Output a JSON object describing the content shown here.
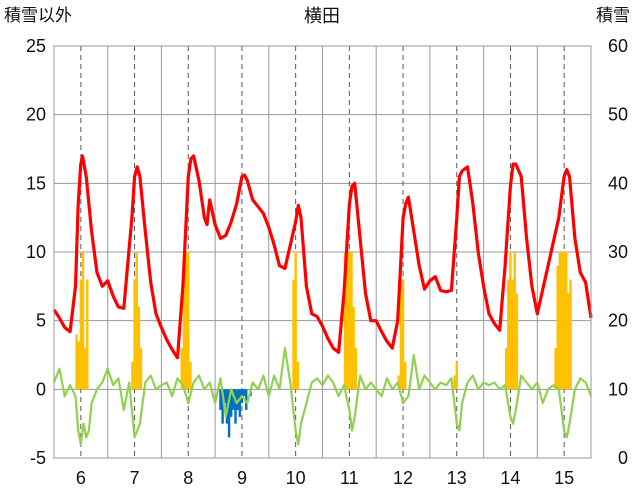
{
  "chart_data": {
    "type": "line",
    "title": "横田",
    "left_axis_label": "積雪以外",
    "right_axis_label": "積雪",
    "x_ticks": [
      "6",
      "7",
      "8",
      "9",
      "10",
      "11",
      "12",
      "13",
      "14",
      "15"
    ],
    "x_range": [
      5.5,
      15.5
    ],
    "y_left": {
      "ticks": [
        25,
        20,
        15,
        10,
        5,
        0,
        -5
      ],
      "range": [
        -5,
        25
      ]
    },
    "y_right": {
      "ticks": [
        60,
        50,
        40,
        30,
        20,
        10,
        0
      ],
      "range": [
        0,
        60
      ]
    },
    "grid": {
      "horizontal": "solid",
      "vertical_day_boundaries": "solid",
      "vertical_noon": "dashed"
    },
    "legend": "none",
    "colors": {
      "temperature": "#ff0000",
      "precipitation": "#ffc000",
      "snow_depth_change": "#0070c0",
      "sunshine_or_other": "#92d050",
      "grid": "#999999"
    },
    "series": [
      {
        "key": "temperature",
        "axis": "left",
        "style": "line",
        "x": [
          5.5,
          5.6,
          5.7,
          5.8,
          5.9,
          5.95,
          6.0,
          6.03,
          6.1,
          6.2,
          6.3,
          6.4,
          6.5,
          6.6,
          6.7,
          6.8,
          6.95,
          7.0,
          7.05,
          7.1,
          7.2,
          7.3,
          7.4,
          7.5,
          7.6,
          7.7,
          7.8,
          7.9,
          8.0,
          8.05,
          8.1,
          8.2,
          8.3,
          8.35,
          8.4,
          8.5,
          8.6,
          8.7,
          8.8,
          8.9,
          9.0,
          9.05,
          9.1,
          9.2,
          9.3,
          9.4,
          9.5,
          9.6,
          9.7,
          9.8,
          9.9,
          10.0,
          10.05,
          10.1,
          10.2,
          10.3,
          10.4,
          10.5,
          10.6,
          10.7,
          10.8,
          10.9,
          11.0,
          11.05,
          11.1,
          11.2,
          11.3,
          11.4,
          11.5,
          11.6,
          11.7,
          11.8,
          11.9,
          12.0,
          12.05,
          12.1,
          12.2,
          12.3,
          12.4,
          12.5,
          12.6,
          12.7,
          12.8,
          12.9,
          13.0,
          13.05,
          13.1,
          13.2,
          13.3,
          13.4,
          13.5,
          13.6,
          13.7,
          13.8,
          13.9,
          14.0,
          14.05,
          14.1,
          14.2,
          14.3,
          14.4,
          14.5,
          14.9,
          15.0,
          15.05,
          15.1,
          15.2,
          15.3,
          15.4,
          15.5
        ],
        "values": [
          5.8,
          5.2,
          4.5,
          4.2,
          7.5,
          13.5,
          16.4,
          17.0,
          15.5,
          11.5,
          8.5,
          7.5,
          7.9,
          6.8,
          6.0,
          5.9,
          12.5,
          15.5,
          16.2,
          15.5,
          11.5,
          7.8,
          5.5,
          4.5,
          3.6,
          2.9,
          2.3,
          7.5,
          15.5,
          16.8,
          17.0,
          15.2,
          12.5,
          12.0,
          13.8,
          12.0,
          11.0,
          11.2,
          12.2,
          13.5,
          15.5,
          15.6,
          15.2,
          13.8,
          13.3,
          12.8,
          11.8,
          10.5,
          9.0,
          8.8,
          10.5,
          12.2,
          13.4,
          12.5,
          7.5,
          5.5,
          5.3,
          4.6,
          3.7,
          3.0,
          2.7,
          7.0,
          13.5,
          14.8,
          15.0,
          11.0,
          7.0,
          5.0,
          5.0,
          4.2,
          3.5,
          3.0,
          5.0,
          12.5,
          13.5,
          14.0,
          11.5,
          9.0,
          7.3,
          7.9,
          8.2,
          7.2,
          7.1,
          7.2,
          12.5,
          15.5,
          15.9,
          16.2,
          13.5,
          10.0,
          7.5,
          5.5,
          4.8,
          4.3,
          9.0,
          14.8,
          16.4,
          16.4,
          15.5,
          11.0,
          7.5,
          5.5,
          12.5,
          15.5,
          16.0,
          15.5,
          11.0,
          8.5,
          7.8,
          5.2
        ]
      },
      {
        "key": "sunshine_or_other",
        "axis": "left",
        "style": "line",
        "x": [
          5.5,
          5.6,
          5.7,
          5.8,
          5.9,
          5.95,
          6.0,
          6.05,
          6.1,
          6.15,
          6.2,
          6.3,
          6.4,
          6.5,
          6.6,
          6.7,
          6.8,
          6.9,
          7.0,
          7.05,
          7.1,
          7.2,
          7.3,
          7.4,
          7.5,
          7.6,
          7.7,
          7.8,
          7.9,
          8.0,
          8.1,
          8.2,
          8.3,
          8.4,
          8.5,
          8.6,
          8.7,
          8.8,
          8.9,
          9.0,
          9.1,
          9.2,
          9.3,
          9.4,
          9.5,
          9.6,
          9.7,
          9.8,
          9.9,
          10.0,
          10.05,
          10.1,
          10.2,
          10.3,
          10.4,
          10.5,
          10.6,
          10.7,
          10.8,
          10.9,
          11.0,
          11.05,
          11.1,
          11.2,
          11.3,
          11.4,
          11.5,
          11.6,
          11.7,
          11.8,
          11.9,
          12.0,
          12.1,
          12.2,
          12.3,
          12.4,
          12.5,
          12.6,
          12.7,
          12.8,
          12.9,
          13.0,
          13.05,
          13.1,
          13.2,
          13.3,
          13.4,
          13.5,
          13.6,
          13.7,
          13.8,
          13.9,
          14.0,
          14.05,
          14.1,
          14.2,
          14.3,
          14.4,
          14.5,
          14.6,
          14.7,
          14.8,
          14.9,
          15.0,
          15.05,
          15.1,
          15.2,
          15.3,
          15.4,
          15.5
        ],
        "values": [
          0.5,
          1.5,
          -0.5,
          0.3,
          -0.5,
          -3.0,
          -4.0,
          -2.5,
          -3.5,
          -3.0,
          -1.0,
          0.0,
          0.5,
          1.5,
          0.3,
          0.8,
          -1.5,
          0.5,
          -3.5,
          -3.0,
          -2.5,
          0.5,
          1.0,
          0.0,
          0.3,
          0.5,
          -0.5,
          0.8,
          0.3,
          -1.0,
          0.5,
          1.0,
          0.0,
          0.5,
          -1.0,
          0.8,
          -2.0,
          0.0,
          -1.0,
          -0.5,
          -1.0,
          0.5,
          0.0,
          1.0,
          -0.5,
          1.0,
          0.0,
          3.0,
          0.5,
          -3.0,
          -4.0,
          -2.5,
          -1.0,
          0.5,
          0.8,
          0.3,
          1.0,
          0.5,
          -0.5,
          0.3,
          -1.5,
          -3.0,
          -2.0,
          1.0,
          0.0,
          0.5,
          0.0,
          -0.5,
          0.8,
          0.0,
          0.5,
          -1.0,
          -0.5,
          2.5,
          0.0,
          1.0,
          0.5,
          0.0,
          0.5,
          0.3,
          0.8,
          -2.5,
          -3.0,
          -1.0,
          0.5,
          1.0,
          0.0,
          0.5,
          0.3,
          0.5,
          0.0,
          0.3,
          -2.0,
          -2.5,
          -1.5,
          1.0,
          0.5,
          0.0,
          0.5,
          -1.0,
          0.0,
          0.3,
          0.0,
          -3.0,
          -3.5,
          -2.5,
          0.0,
          0.8,
          0.5,
          -0.5
        ]
      },
      {
        "key": "precipitation",
        "axis": "left",
        "style": "bar",
        "x": [
          5.92,
          5.96,
          6.0,
          6.04,
          6.08,
          6.12,
          6.96,
          7.0,
          7.04,
          7.08,
          7.12,
          7.88,
          7.92,
          7.96,
          8.0,
          8.04,
          9.96,
          10.0,
          10.04,
          10.92,
          10.96,
          11.0,
          11.04,
          11.08,
          11.12,
          11.92,
          11.96,
          12.0,
          12.04,
          12.96,
          13.0,
          13.92,
          13.96,
          14.0,
          14.04,
          14.08,
          14.12,
          14.84,
          14.88,
          14.92,
          14.96,
          15.0,
          15.04,
          15.08,
          15.12
        ],
        "values": [
          4,
          3.5,
          8,
          10,
          3,
          8,
          2,
          8,
          10,
          6,
          3,
          3,
          8,
          10,
          10,
          2,
          8,
          10,
          2,
          10,
          10,
          10,
          10,
          6,
          3,
          1,
          8,
          8,
          2,
          1,
          2,
          3,
          8,
          10,
          8,
          10,
          7,
          3,
          9,
          10,
          10,
          10,
          10,
          7,
          8
        ]
      },
      {
        "key": "snow_depth_change",
        "axis": "left",
        "style": "bar",
        "x": [
          8.6,
          8.64,
          8.68,
          8.72,
          8.76,
          8.8,
          8.84,
          8.88,
          8.92,
          8.96,
          9.0,
          9.04,
          9.08,
          9.16
        ],
        "values": [
          -1.5,
          -2.5,
          -1.0,
          -2.5,
          -3.5,
          -2.0,
          -1.5,
          -2.5,
          -1.5,
          -2.0,
          -1.0,
          -0.5,
          -1.5,
          -0.5
        ]
      }
    ]
  }
}
